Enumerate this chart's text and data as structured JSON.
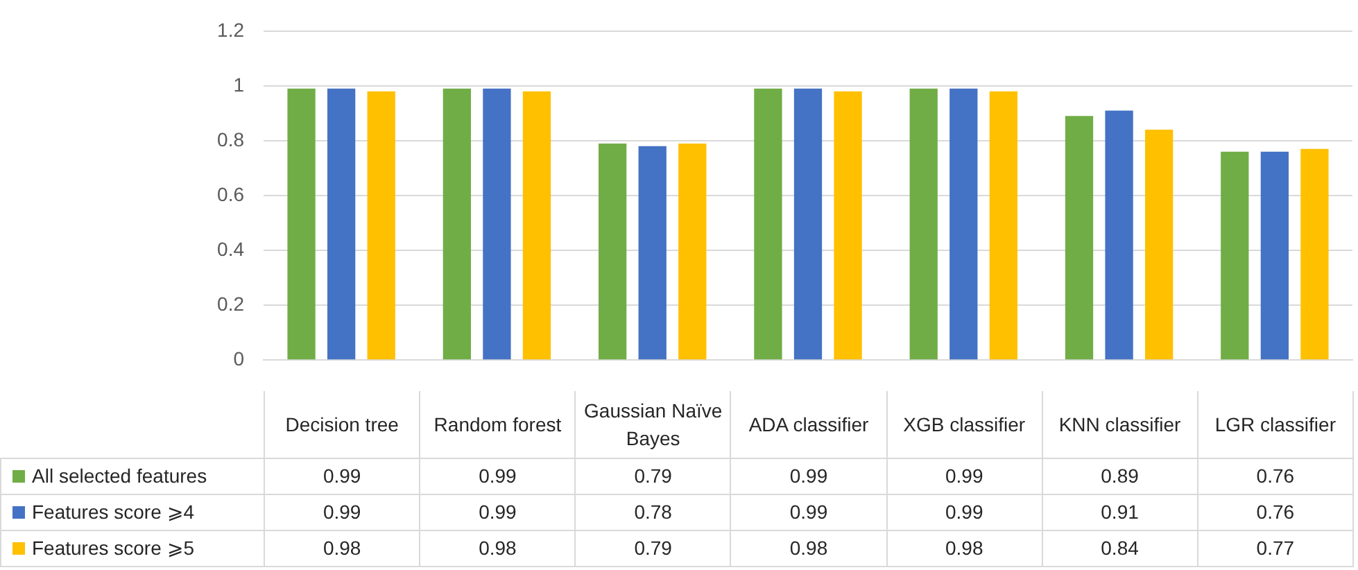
{
  "chart_data": {
    "type": "bar",
    "categories": [
      "Decision tree",
      "Random forest",
      "Gaussian Naïve Bayes",
      "ADA classifier",
      "XGB classifier",
      "KNN classifier",
      "LGR classifier"
    ],
    "series": [
      {
        "name": "All selected features",
        "color": "#70ad47",
        "values": [
          0.99,
          0.99,
          0.79,
          0.99,
          0.99,
          0.89,
          0.76
        ]
      },
      {
        "name": "Features score ⩾4",
        "color": "#4472c4",
        "values": [
          0.99,
          0.99,
          0.78,
          0.99,
          0.99,
          0.91,
          0.76
        ]
      },
      {
        "name": "Features score ⩾5",
        "color": "#ffc000",
        "values": [
          0.98,
          0.98,
          0.79,
          0.98,
          0.98,
          0.84,
          0.77
        ]
      }
    ],
    "ylim": [
      0,
      1.2
    ],
    "yticks": [
      0,
      0.2,
      0.4,
      0.6,
      0.8,
      1,
      1.2
    ],
    "grid": "y",
    "legend": "bottom",
    "data_labels": true
  }
}
